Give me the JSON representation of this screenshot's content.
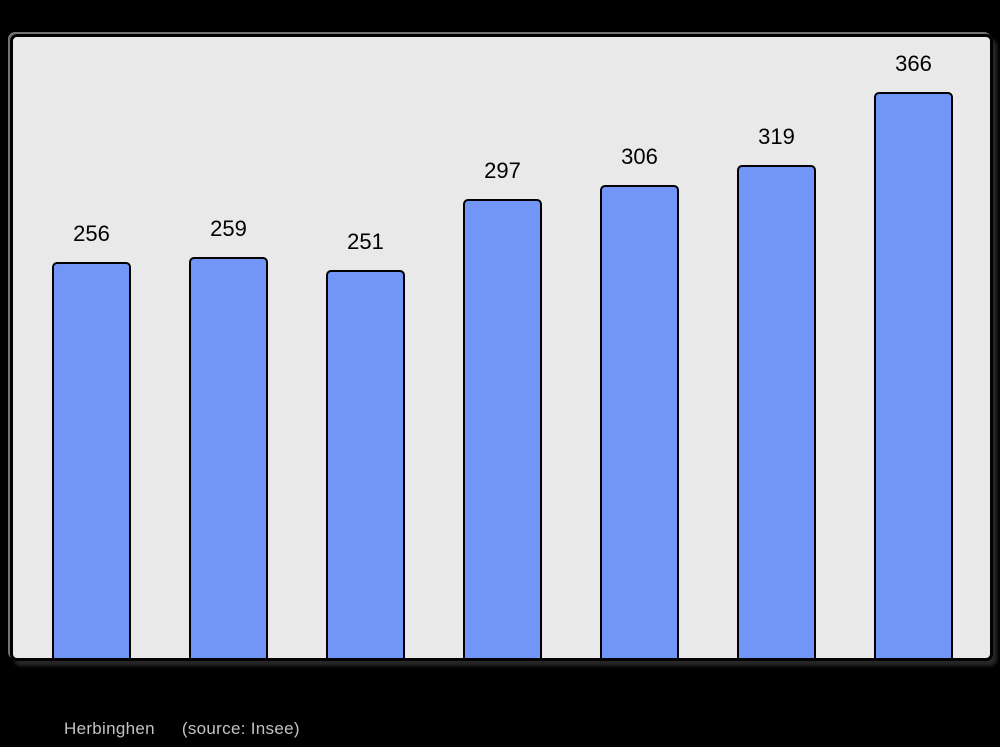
{
  "page": {
    "background": "#000000"
  },
  "chart_data": {
    "type": "bar",
    "categories": [
      "",
      "",
      "",
      "",
      "",
      "",
      ""
    ],
    "values": [
      256,
      259,
      251,
      297,
      306,
      319,
      366
    ],
    "data_labels": [
      "256",
      "259",
      "251",
      "297",
      "306",
      "319",
      "366"
    ],
    "title": "",
    "xlabel": "",
    "ylabel": "",
    "ylim": [
      0,
      402
    ],
    "grid": false,
    "legend": null,
    "axes_visible": false,
    "colors": {
      "bar_fill": "#7296f7",
      "bar_border": "#000000",
      "plot_background": "#e9e9e9",
      "frame_border": "#000000",
      "data_label": "#000000"
    }
  },
  "caption": {
    "commune": "Herbinghen",
    "source": "(source: Insee)",
    "color": "#c2c2c2"
  }
}
